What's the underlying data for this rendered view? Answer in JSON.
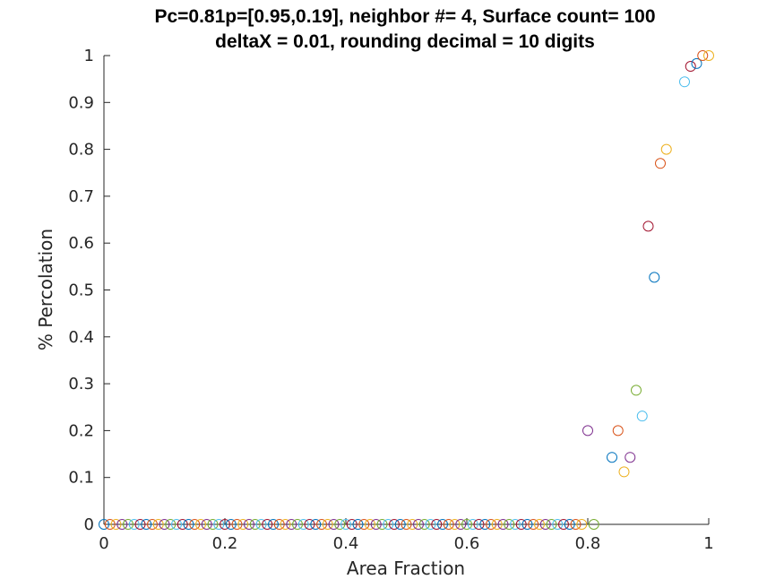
{
  "chart_data": {
    "type": "scatter",
    "title": [
      "Pc=0.81p=[0.95,0.19], neighbor #= 4, Surface count= 100",
      "deltaX = 0.01, rounding decimal = 10 digits"
    ],
    "xlabel": "Area Fraction",
    "ylabel": "% Percolation",
    "xlim": [
      0,
      1
    ],
    "ylim": [
      0,
      1
    ],
    "grid": false,
    "xticks": [
      0,
      0.2,
      0.4,
      0.6,
      0.8,
      1
    ],
    "xtick_labels": [
      "0",
      "0.2",
      "0.4",
      "0.6",
      "0.8",
      "1"
    ],
    "yticks": [
      0,
      0.1,
      0.2,
      0.3,
      0.4,
      0.5,
      0.6,
      0.7,
      0.8,
      0.9,
      1
    ],
    "ytick_labels": [
      "0",
      "0.1",
      "0.2",
      "0.3",
      "0.4",
      "0.5",
      "0.6",
      "0.7",
      "0.8",
      "0.9",
      "1"
    ],
    "marker": "open-circle",
    "color_cycle": [
      "#0072BD",
      "#D95319",
      "#EDB120",
      "#7E2F8E",
      "#77AC30",
      "#4DBEEE",
      "#A2142F"
    ],
    "x": [
      0,
      0.01,
      0.02,
      0.03,
      0.04,
      0.05,
      0.06,
      0.07,
      0.08,
      0.09,
      0.1,
      0.11,
      0.12,
      0.13,
      0.14,
      0.15,
      0.16,
      0.17,
      0.18,
      0.19,
      0.2,
      0.21,
      0.22,
      0.23,
      0.24,
      0.25,
      0.26,
      0.27,
      0.28,
      0.29,
      0.3,
      0.31,
      0.32,
      0.33,
      0.34,
      0.35,
      0.36,
      0.37,
      0.38,
      0.39,
      0.4,
      0.41,
      0.42,
      0.43,
      0.44,
      0.45,
      0.46,
      0.47,
      0.48,
      0.49,
      0.5,
      0.51,
      0.52,
      0.53,
      0.54,
      0.55,
      0.56,
      0.57,
      0.58,
      0.59,
      0.6,
      0.61,
      0.62,
      0.63,
      0.64,
      0.65,
      0.66,
      0.67,
      0.68,
      0.69,
      0.7,
      0.71,
      0.72,
      0.73,
      0.74,
      0.75,
      0.76,
      0.77,
      0.78,
      0.79,
      0.8,
      0.81,
      0.82,
      0.83,
      0.84,
      0.85,
      0.86,
      0.87,
      0.88,
      0.89,
      0.9,
      0.91,
      0.92,
      0.93,
      0.94,
      0.95,
      0.96,
      0.97,
      0.98,
      0.99,
      1
    ],
    "y": [
      0,
      0,
      0,
      0,
      0,
      0,
      0,
      0,
      0,
      0,
      0,
      0,
      0,
      0,
      0,
      0,
      0,
      0,
      0,
      0,
      0,
      0,
      0,
      0,
      0,
      0,
      0,
      0,
      0,
      0,
      0,
      0,
      0,
      0,
      0,
      0,
      0,
      0,
      0,
      0,
      0,
      0,
      0,
      0,
      0,
      0,
      0,
      0,
      0,
      0,
      0,
      0,
      0,
      0,
      0,
      0,
      0,
      0,
      0,
      0,
      0,
      0,
      0,
      0,
      0,
      0,
      0,
      0,
      0,
      0,
      0,
      0,
      0,
      0,
      0,
      0,
      0,
      0,
      0,
      0,
      0.2,
      0,
      null,
      null,
      0.143,
      0.2,
      0.112,
      0.143,
      0.286,
      0.231,
      0.636,
      0.527,
      0.77,
      0.8,
      null,
      null,
      0.944,
      0.977,
      0.983,
      1,
      1
    ]
  }
}
